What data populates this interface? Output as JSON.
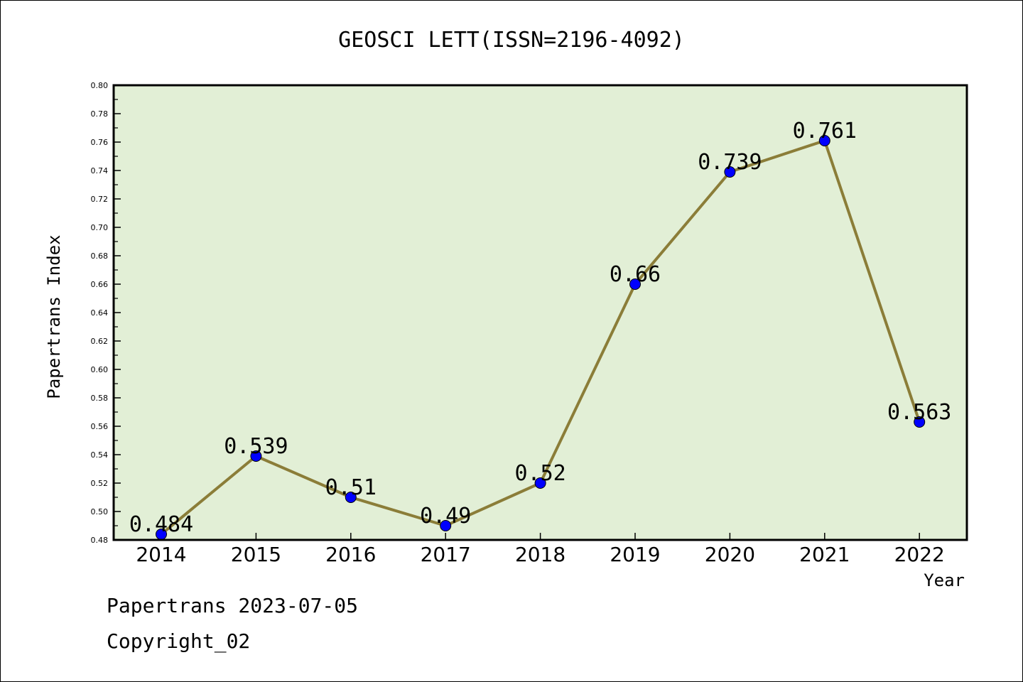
{
  "chart_data": {
    "type": "line",
    "title": "GEOSCI LETT(ISSN=2196-4092)",
    "xlabel": "Year",
    "ylabel": "Papertrans Index",
    "categories": [
      "2014",
      "2015",
      "2016",
      "2017",
      "2018",
      "2019",
      "2020",
      "2021",
      "2022"
    ],
    "series": [
      {
        "values": [
          0.484,
          0.539,
          0.51,
          0.49,
          0.52,
          0.66,
          0.739,
          0.761,
          0.563
        ]
      }
    ],
    "data_labels": [
      "0.484",
      "0.539",
      "0.51",
      "0.49",
      "0.52",
      "0.66",
      "0.739",
      "0.761",
      "0.563"
    ],
    "ylim": [
      0.48,
      0.8
    ],
    "yticks": [
      "0.48",
      "0.50",
      "0.52",
      "0.54",
      "0.56",
      "0.58",
      "0.60",
      "0.62",
      "0.64",
      "0.66",
      "0.68",
      "0.70",
      "0.72",
      "0.74",
      "0.76",
      "0.78",
      "0.80"
    ],
    "grid": false,
    "colors": {
      "plot_background": "#e2efd6",
      "line": "#8b7d38",
      "marker": "#0000ff"
    }
  },
  "footer": {
    "source": "Papertrans 2023-07-05",
    "copyright": "Copyright_02"
  }
}
